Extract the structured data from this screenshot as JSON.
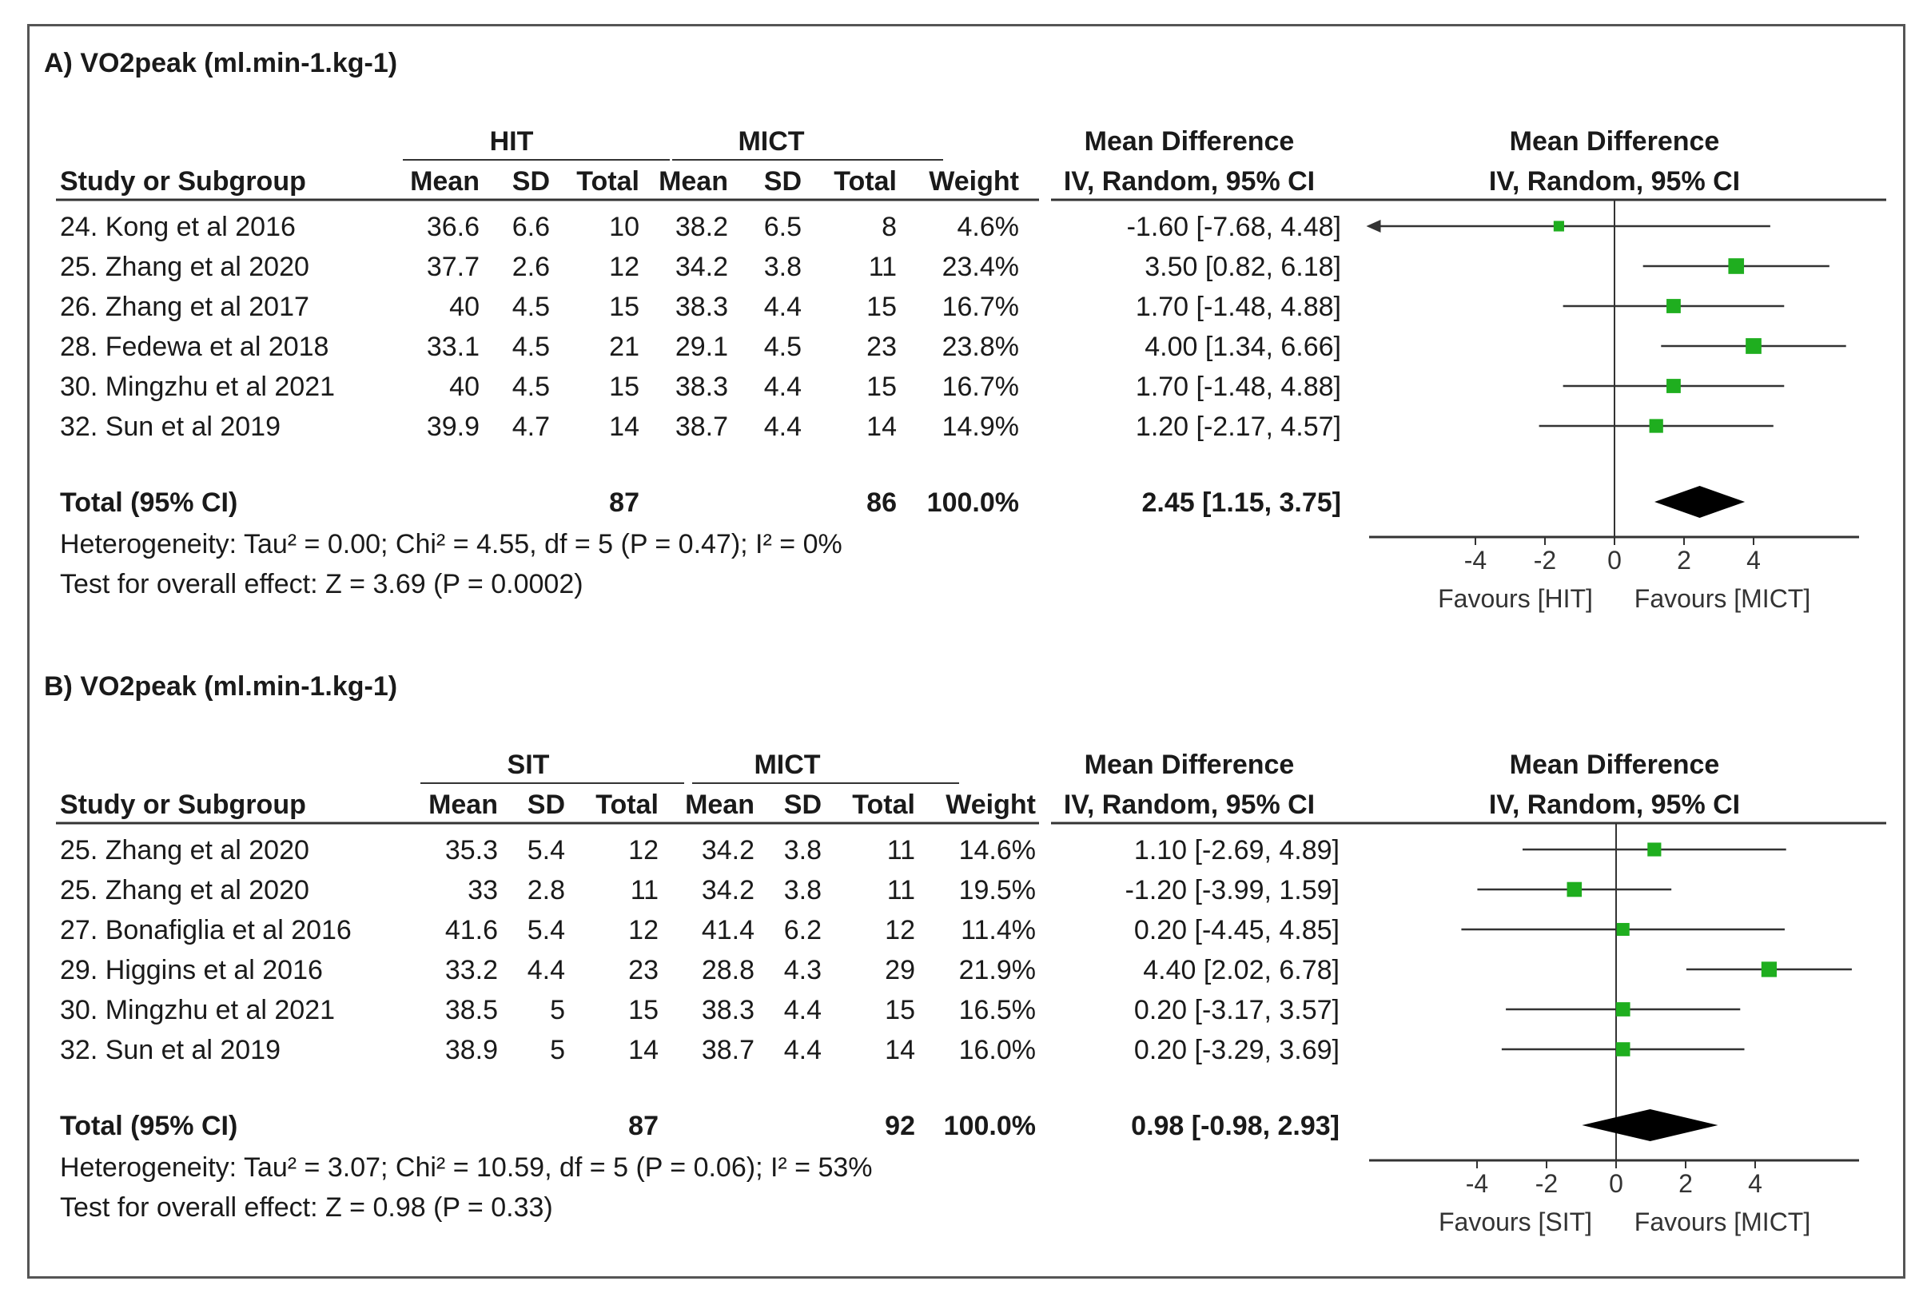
{
  "chart_data": [
    {
      "type": "forest",
      "title": "A) VO2peak (ml.min-1.kg-1)",
      "experimental_group": "HIT",
      "control_group": "MICT",
      "headers": {
        "study": "Study or Subgroup",
        "mean": "Mean",
        "sd": "SD",
        "total": "Total",
        "weight": "Weight",
        "md_label": "Mean Difference",
        "md_method": "IV, Random, 95% CI"
      },
      "studies": [
        {
          "name": "24. Kong et al 2016",
          "exp_mean": "36.6",
          "exp_sd": "6.6",
          "exp_total": "10",
          "ctl_mean": "38.2",
          "ctl_sd": "6.5",
          "ctl_total": "8",
          "weight": "4.6%",
          "ci_text": "-1.60 [-7.68, 4.48]",
          "md": -1.6,
          "lower": -7.68,
          "upper": 4.48,
          "weight_pct": 4.6
        },
        {
          "name": "25. Zhang et al 2020",
          "exp_mean": "37.7",
          "exp_sd": "2.6",
          "exp_total": "12",
          "ctl_mean": "34.2",
          "ctl_sd": "3.8",
          "ctl_total": "11",
          "weight": "23.4%",
          "ci_text": "3.50 [0.82, 6.18]",
          "md": 3.5,
          "lower": 0.82,
          "upper": 6.18,
          "weight_pct": 23.4
        },
        {
          "name": "26. Zhang et al 2017",
          "exp_mean": "40",
          "exp_sd": "4.5",
          "exp_total": "15",
          "ctl_mean": "38.3",
          "ctl_sd": "4.4",
          "ctl_total": "15",
          "weight": "16.7%",
          "ci_text": "1.70 [-1.48, 4.88]",
          "md": 1.7,
          "lower": -1.48,
          "upper": 4.88,
          "weight_pct": 16.7
        },
        {
          "name": "28. Fedewa et al 2018",
          "exp_mean": "33.1",
          "exp_sd": "4.5",
          "exp_total": "21",
          "ctl_mean": "29.1",
          "ctl_sd": "4.5",
          "ctl_total": "23",
          "weight": "23.8%",
          "ci_text": "4.00 [1.34, 6.66]",
          "md": 4.0,
          "lower": 1.34,
          "upper": 6.66,
          "weight_pct": 23.8
        },
        {
          "name": "30. Mingzhu et al 2021",
          "exp_mean": "40",
          "exp_sd": "4.5",
          "exp_total": "15",
          "ctl_mean": "38.3",
          "ctl_sd": "4.4",
          "ctl_total": "15",
          "weight": "16.7%",
          "ci_text": "1.70 [-1.48, 4.88]",
          "md": 1.7,
          "lower": -1.48,
          "upper": 4.88,
          "weight_pct": 16.7
        },
        {
          "name": "32. Sun et al 2019",
          "exp_mean": "39.9",
          "exp_sd": "4.7",
          "exp_total": "14",
          "ctl_mean": "38.7",
          "ctl_sd": "4.4",
          "ctl_total": "14",
          "weight": "14.9%",
          "ci_text": "1.20 [-2.17, 4.57]",
          "md": 1.2,
          "lower": -2.17,
          "upper": 4.57,
          "weight_pct": 14.9
        }
      ],
      "total": {
        "label": "Total (95% CI)",
        "exp_total": "87",
        "ctl_total": "86",
        "weight": "100.0%",
        "ci_text": "2.45 [1.15, 3.75]",
        "md": 2.45,
        "lower": 1.15,
        "upper": 3.75
      },
      "heterogeneity": "Heterogeneity: Tau² = 0.00; Chi² = 4.55, df = 5 (P = 0.47); I² = 0%",
      "overall_effect": "Test for overall effect: Z = 3.69 (P = 0.0002)",
      "axis": {
        "ticks": [
          "-4",
          "-2",
          "0",
          "2",
          "4"
        ],
        "tick_values": [
          -4,
          -2,
          0,
          2,
          4
        ],
        "xlim": [
          -7,
          7
        ]
      },
      "favours_left": "Favours [HIT]",
      "favours_right": "Favours [MICT]"
    },
    {
      "type": "forest",
      "title": "B) VO2peak (ml.min-1.kg-1)",
      "experimental_group": "SIT",
      "control_group": "MICT",
      "headers": {
        "study": "Study or Subgroup",
        "mean": "Mean",
        "sd": "SD",
        "total": "Total",
        "weight": "Weight",
        "md_label": "Mean Difference",
        "md_method": "IV, Random, 95% CI"
      },
      "studies": [
        {
          "name": "25. Zhang et al 2020",
          "exp_mean": "35.3",
          "exp_sd": "5.4",
          "exp_total": "12",
          "ctl_mean": "34.2",
          "ctl_sd": "3.8",
          "ctl_total": "11",
          "weight": "14.6%",
          "ci_text": "1.10 [-2.69, 4.89]",
          "md": 1.1,
          "lower": -2.69,
          "upper": 4.89,
          "weight_pct": 14.6
        },
        {
          "name": "25. Zhang et al 2020",
          "exp_mean": "33",
          "exp_sd": "2.8",
          "exp_total": "11",
          "ctl_mean": "34.2",
          "ctl_sd": "3.8",
          "ctl_total": "11",
          "weight": "19.5%",
          "ci_text": "-1.20 [-3.99, 1.59]",
          "md": -1.2,
          "lower": -3.99,
          "upper": 1.59,
          "weight_pct": 19.5
        },
        {
          "name": "27. Bonafiglia et al 2016",
          "exp_mean": "41.6",
          "exp_sd": "5.4",
          "exp_total": "12",
          "ctl_mean": "41.4",
          "ctl_sd": "6.2",
          "ctl_total": "12",
          "weight": "11.4%",
          "ci_text": "0.20 [-4.45, 4.85]",
          "md": 0.2,
          "lower": -4.45,
          "upper": 4.85,
          "weight_pct": 11.4
        },
        {
          "name": "29. Higgins et al 2016",
          "exp_mean": "33.2",
          "exp_sd": "4.4",
          "exp_total": "23",
          "ctl_mean": "28.8",
          "ctl_sd": "4.3",
          "ctl_total": "29",
          "weight": "21.9%",
          "ci_text": "4.40 [2.02, 6.78]",
          "md": 4.4,
          "lower": 2.02,
          "upper": 6.78,
          "weight_pct": 21.9
        },
        {
          "name": "30. Mingzhu et al 2021",
          "exp_mean": "38.5",
          "exp_sd": "5",
          "exp_total": "15",
          "ctl_mean": "38.3",
          "ctl_sd": "4.4",
          "ctl_total": "15",
          "weight": "16.5%",
          "ci_text": "0.20 [-3.17, 3.57]",
          "md": 0.2,
          "lower": -3.17,
          "upper": 3.57,
          "weight_pct": 16.5
        },
        {
          "name": "32. Sun et al 2019",
          "exp_mean": "38.9",
          "exp_sd": "5",
          "exp_total": "14",
          "ctl_mean": "38.7",
          "ctl_sd": "4.4",
          "ctl_total": "14",
          "weight": "16.0%",
          "ci_text": "0.20 [-3.29, 3.69]",
          "md": 0.2,
          "lower": -3.29,
          "upper": 3.69,
          "weight_pct": 16.0
        }
      ],
      "total": {
        "label": "Total (95% CI)",
        "exp_total": "87",
        "ctl_total": "92",
        "weight": "100.0%",
        "ci_text": "0.98 [-0.98, 2.93]",
        "md": 0.98,
        "lower": -0.98,
        "upper": 2.93
      },
      "heterogeneity": "Heterogeneity: Tau² = 3.07; Chi² = 10.59, df = 5 (P = 0.06); I² = 53%",
      "overall_effect": "Test for overall effect: Z = 0.98 (P = 0.33)",
      "axis": {
        "ticks": [
          "-4",
          "-2",
          "0",
          "2",
          "4"
        ],
        "tick_values": [
          -4,
          -2,
          0,
          2,
          4
        ],
        "xlim": [
          -7,
          7
        ]
      },
      "favours_left": "Favours [SIT]",
      "favours_right": "Favours [MICT]"
    }
  ],
  "colors": {
    "marker": "#1fae1f",
    "diamond": "#000000",
    "line": "#333333"
  }
}
